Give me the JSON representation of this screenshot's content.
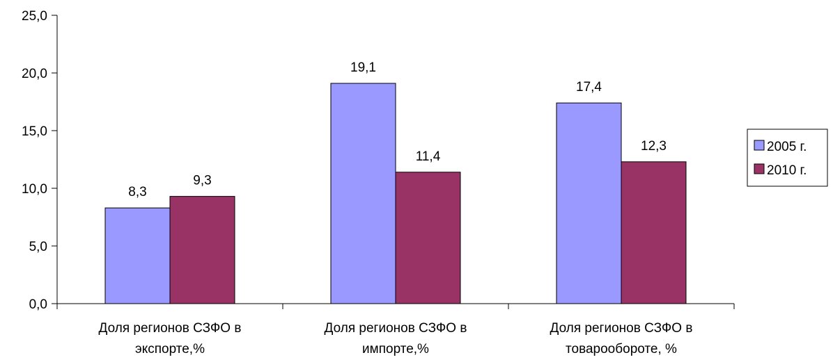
{
  "chart_data": {
    "type": "bar",
    "title": "",
    "xlabel": "",
    "ylabel": "",
    "categories": [
      [
        "Доля регионов СЗФО в",
        "экспорте,%"
      ],
      [
        "Доля регионов СЗФО в",
        "импорте,%"
      ],
      [
        "Доля регионов СЗФО в",
        "товарообороте, %"
      ]
    ],
    "series": [
      {
        "name": "2005 г.",
        "color": "#9999ff",
        "values": [
          8.3,
          19.1,
          17.4
        ],
        "labels": [
          "8,3",
          "19,1",
          "17,4"
        ]
      },
      {
        "name": "2010 г.",
        "color": "#993366",
        "values": [
          9.3,
          11.4,
          12.3
        ],
        "labels": [
          "9,3",
          "11,4",
          "12,3"
        ]
      }
    ],
    "ylim": [
      0,
      25
    ],
    "yticks": [
      0,
      5,
      10,
      15,
      20,
      25
    ],
    "ytick_labels": [
      "0,0",
      "5,0",
      "10,0",
      "15,0",
      "20,0",
      "25,0"
    ],
    "grid": false,
    "legend_position": "right"
  }
}
